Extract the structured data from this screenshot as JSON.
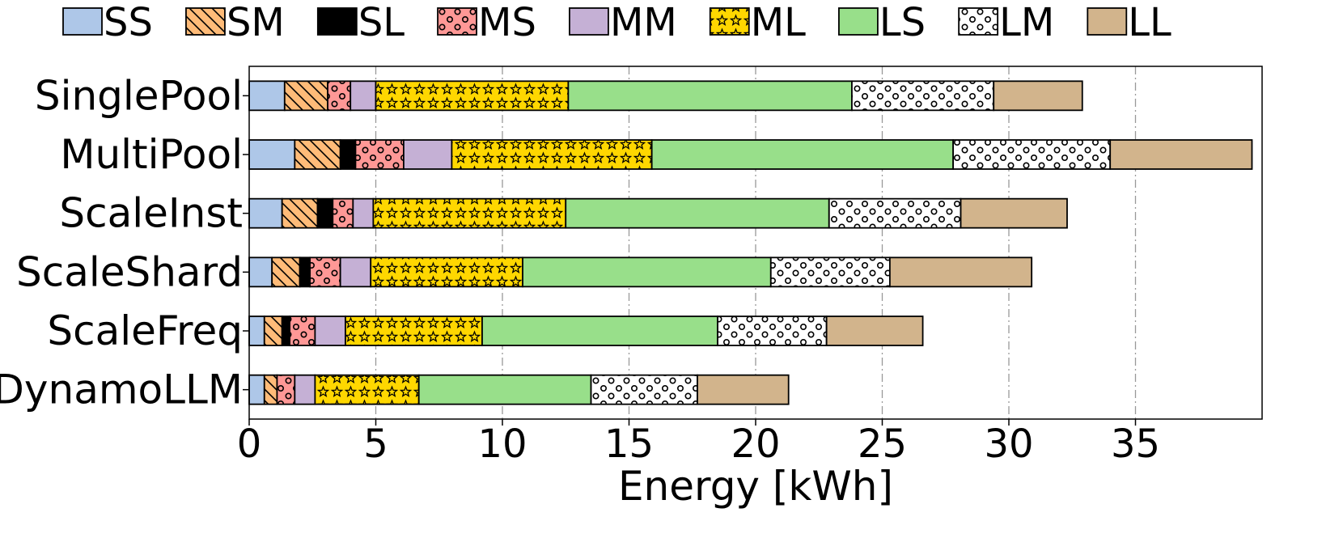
{
  "chart_data": {
    "type": "bar",
    "orientation": "horizontal",
    "stacked": true,
    "title": "",
    "xlabel": "Energy [kWh]",
    "ylabel": "",
    "xlim": [
      0,
      40
    ],
    "xticks": [
      0,
      5,
      10,
      15,
      20,
      25,
      30,
      35
    ],
    "grid": "vertical dash-dot",
    "legend": "top",
    "categories": [
      "SinglePool",
      "MultiPool",
      "ScaleInst",
      "ScaleShard",
      "ScaleFreq",
      "DynamoLLM"
    ],
    "series": [
      {
        "name": "SS",
        "color": "#aec7e8",
        "pattern": "none",
        "values": [
          1.4,
          1.8,
          1.3,
          0.9,
          0.6,
          0.6
        ]
      },
      {
        "name": "SM",
        "color": "#ffbb78",
        "pattern": "diagonal",
        "values": [
          1.7,
          1.8,
          1.4,
          1.1,
          0.7,
          0.5
        ]
      },
      {
        "name": "SL",
        "color": "#000000",
        "pattern": "none",
        "values": [
          0.0,
          0.6,
          0.6,
          0.4,
          0.3,
          0.0
        ]
      },
      {
        "name": "MS",
        "color": "#ff9896",
        "pattern": "circles",
        "values": [
          0.9,
          1.9,
          0.8,
          1.2,
          1.0,
          0.7
        ]
      },
      {
        "name": "MM",
        "color": "#c5b0d5",
        "pattern": "none",
        "values": [
          1.0,
          1.9,
          0.8,
          1.2,
          1.2,
          0.8
        ]
      },
      {
        "name": "ML",
        "color": "#ffd700",
        "pattern": "stars",
        "values": [
          7.6,
          7.9,
          7.6,
          6.0,
          5.4,
          4.1
        ]
      },
      {
        "name": "LS",
        "color": "#98df8a",
        "pattern": "none",
        "values": [
          11.2,
          11.9,
          10.4,
          9.8,
          9.3,
          6.8
        ]
      },
      {
        "name": "LM",
        "color": "#ffffff",
        "pattern": "circles",
        "values": [
          5.6,
          6.2,
          5.2,
          4.7,
          4.3,
          4.2
        ]
      },
      {
        "name": "LL",
        "color": "#d2b48c",
        "pattern": "none",
        "values": [
          3.5,
          5.6,
          4.2,
          5.6,
          3.8,
          3.6
        ]
      }
    ]
  }
}
